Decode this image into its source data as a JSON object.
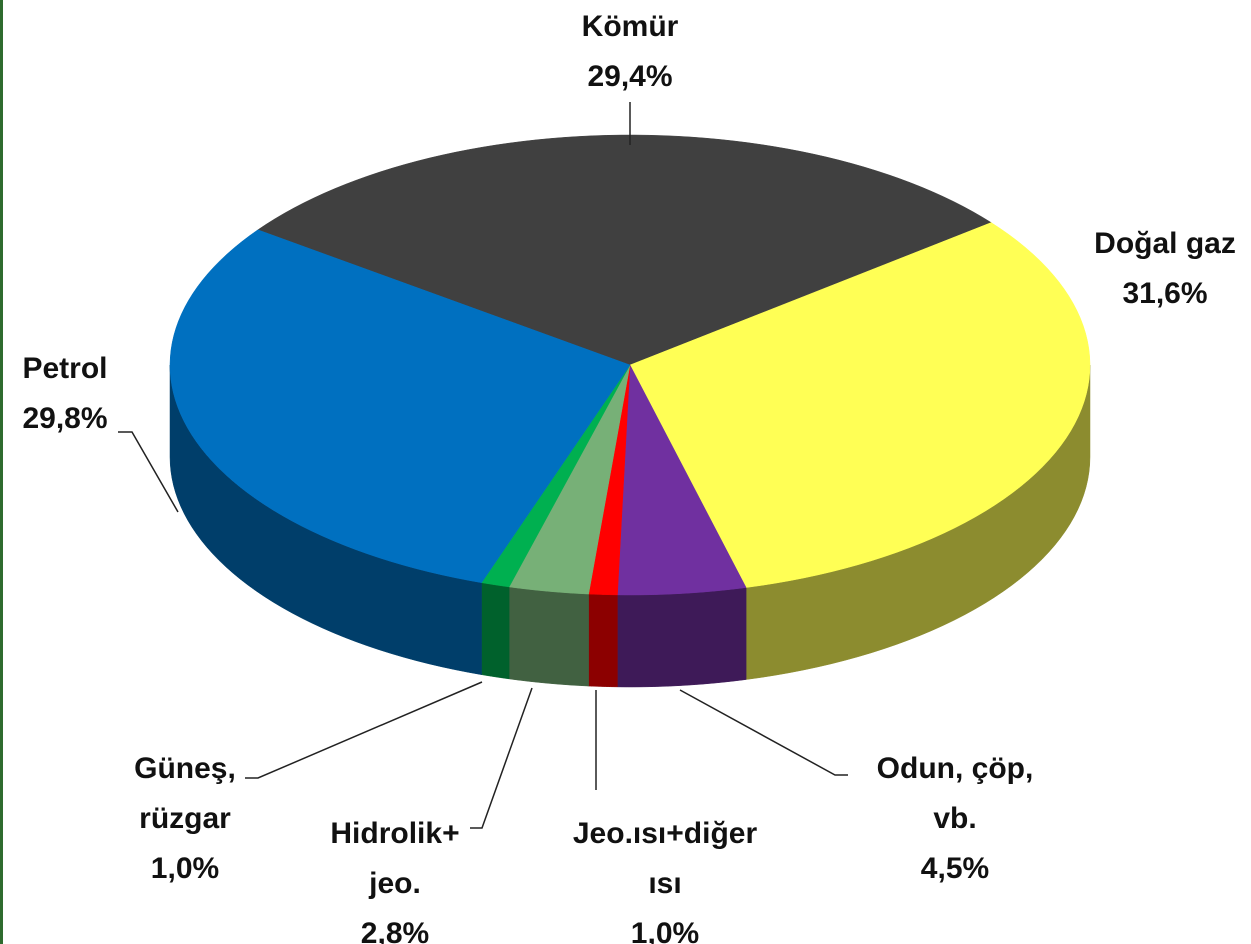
{
  "chart_data": {
    "type": "pie",
    "categories": [
      [
        "Kömür"
      ],
      [
        "Doğal gaz"
      ],
      [
        "Odun, çöp,",
        "vb."
      ],
      [
        "Jeo.ısı+diğer",
        "ısı"
      ],
      [
        "Hidrolik+",
        "jeo."
      ],
      [
        "Güneş,",
        "rüzgar"
      ],
      [
        "Petrol"
      ]
    ],
    "values": [
      29.4,
      31.6,
      4.5,
      1.0,
      2.8,
      1.0,
      29.8
    ],
    "value_labels": [
      "29,4%",
      "31,6%",
      "4,5%",
      "1,0%",
      "2,8%",
      "1,0%",
      "29,8%"
    ],
    "colors": [
      "#404040",
      "#ffff55",
      "#7030a0",
      "#ff0000",
      "#77b077",
      "#00b050",
      "#0070c0"
    ]
  }
}
